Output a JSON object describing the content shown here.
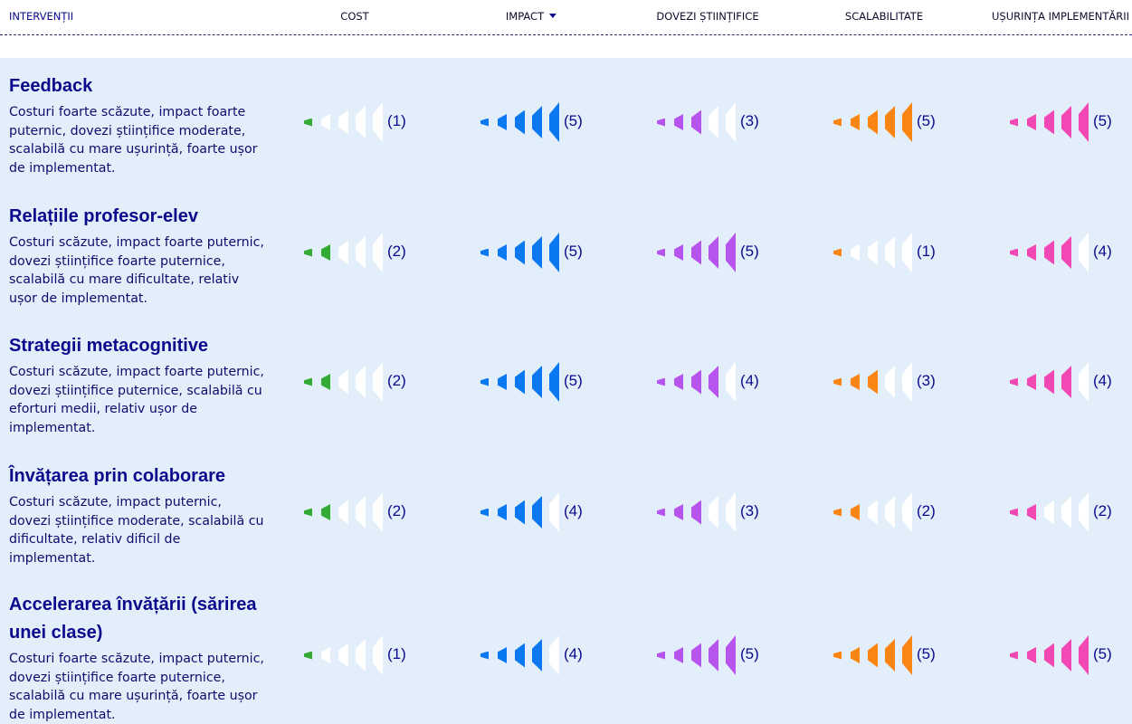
{
  "header": {
    "first_column": "INTERVENȚII",
    "columns": [
      {
        "label": "COST",
        "sortable": false
      },
      {
        "label": "IMPACT",
        "sortable": true,
        "sort_icon": "caret-down-icon"
      },
      {
        "label": "DOVEZI ȘTIINȚIFICE",
        "sortable": false
      },
      {
        "label": "SCALABILITATE",
        "sortable": false
      },
      {
        "label": "UȘURINȚA IMPLEMENTĂRII",
        "sortable": false
      }
    ]
  },
  "colors": {
    "cost": "#33aa33",
    "impact": "#0a78f0",
    "dovezi": "#b854ee",
    "scalabilitate": "#fb8512",
    "usurinta": "#f248b4",
    "empty": "#ffffff"
  },
  "metric_max": 5,
  "rows": [
    {
      "title": "Feedback",
      "description": "Costuri foarte scăzute, impact foarte puternic, dovezi științifice moderate, scalabilă cu mare ușurință, foarte ușor de implementat.",
      "ratings": [
        {
          "value": 1,
          "label": "(1)"
        },
        {
          "value": 5,
          "label": "(5)"
        },
        {
          "value": 3,
          "label": "(3)"
        },
        {
          "value": 5,
          "label": "(5)"
        },
        {
          "value": 5,
          "label": "(5)"
        }
      ]
    },
    {
      "title": "Relațiile profesor-elev",
      "description": "Costuri scăzute, impact foarte puternic, dovezi științifice foarte puternice, scalabilă cu mare dificultate, relativ ușor de implementat.",
      "ratings": [
        {
          "value": 2,
          "label": "(2)"
        },
        {
          "value": 5,
          "label": "(5)"
        },
        {
          "value": 5,
          "label": "(5)"
        },
        {
          "value": 1,
          "label": "(1)"
        },
        {
          "value": 4,
          "label": "(4)"
        }
      ]
    },
    {
      "title": "Strategii metacognitive",
      "description": "Costuri scăzute, impact foarte puternic, dovezi științifice puternice, scalabilă cu eforturi medii, relativ ușor de implementat.",
      "ratings": [
        {
          "value": 2,
          "label": "(2)"
        },
        {
          "value": 5,
          "label": "(5)"
        },
        {
          "value": 4,
          "label": "(4)"
        },
        {
          "value": 3,
          "label": "(3)"
        },
        {
          "value": 4,
          "label": "(4)"
        }
      ]
    },
    {
      "title": "Învățarea prin colaborare",
      "description": "Costuri scăzute, impact puternic, dovezi științifice moderate, scalabilă cu dificultate, relativ dificil de implementat.",
      "ratings": [
        {
          "value": 2,
          "label": "(2)"
        },
        {
          "value": 4,
          "label": "(4)"
        },
        {
          "value": 3,
          "label": "(3)"
        },
        {
          "value": 2,
          "label": "(2)"
        },
        {
          "value": 2,
          "label": "(2)"
        }
      ]
    },
    {
      "title": "Accelerarea învățării (sărirea unei clase)",
      "description": "Costuri foarte scăzute, impact puternic, dovezi științifice foarte puternice, scalabilă cu mare ușurință, foarte ușor de implementat.",
      "ratings": [
        {
          "value": 1,
          "label": "(1)"
        },
        {
          "value": 4,
          "label": "(4)"
        },
        {
          "value": 5,
          "label": "(5)"
        },
        {
          "value": 5,
          "label": "(5)"
        },
        {
          "value": 5,
          "label": "(5)"
        }
      ]
    }
  ]
}
